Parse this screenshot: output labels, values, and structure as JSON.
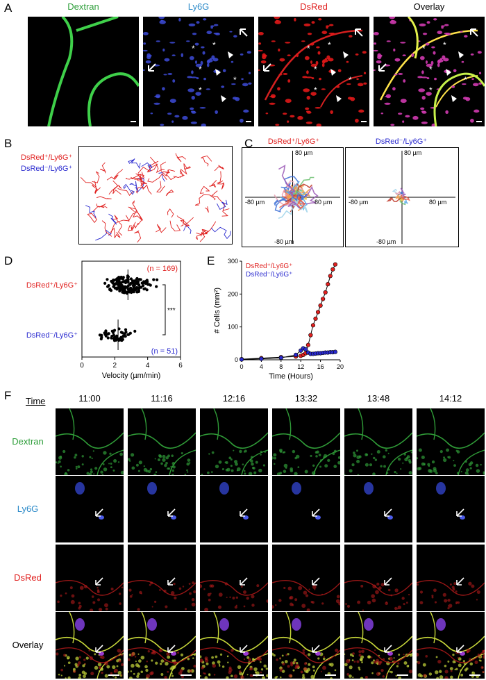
{
  "panels": {
    "A": "A",
    "B": "B",
    "C": "C",
    "D": "D",
    "E": "E",
    "F": "F"
  },
  "panel_a": {
    "channels": [
      {
        "name": "Dextran",
        "color": "#2e9e3a"
      },
      {
        "name": "Ly6G",
        "color": "#2d8bc9"
      },
      {
        "name": "DsRed",
        "color": "#e0201f"
      },
      {
        "name": "Overlay",
        "color": "#000000"
      }
    ]
  },
  "panel_b": {
    "legend": [
      {
        "label": "DsRed⁺/Ly6G⁺",
        "color": "#e0201f"
      },
      {
        "label": "DsRed⁻/Ly6G⁺",
        "color": "#2a2acf"
      }
    ]
  },
  "panel_c": {
    "plots": [
      {
        "title": "DsRed⁺/Ly6G⁺",
        "color": "#e0201f",
        "top": "80 µm",
        "bottom": "-80 µm",
        "left": "-80 µm",
        "right": "80 µm"
      },
      {
        "title": "DsRed⁻/Ly6G⁺",
        "color": "#2a2acf",
        "top": "80 µm",
        "bottom": "-80 µm",
        "left": "-80 µm",
        "right": "80 µm"
      }
    ]
  },
  "chart_data": [
    {
      "type": "scatter",
      "panel": "D",
      "categories": [
        "DsRed⁺/Ly6G⁺",
        "DsRed⁻/Ly6G⁺"
      ],
      "xlabel": "Velocity (µm/min)",
      "xlim": [
        0,
        6
      ],
      "xticks": [
        "0",
        "2",
        "4",
        "6"
      ],
      "annotations": [
        "(n = 169)",
        "(n = 51)",
        "***"
      ],
      "series": [
        {
          "name": "DsRed⁺/Ly6G⁺",
          "n": 169,
          "mean": 2.8,
          "color": "#e0201f"
        },
        {
          "name": "DsRed⁻/Ly6G⁺",
          "n": 51,
          "mean": 2.2,
          "color": "#2a2acf"
        }
      ]
    },
    {
      "type": "line",
      "panel": "E",
      "xlabel": "Time (Hours)",
      "ylabel": "# Cells (mm²)",
      "xlim": [
        0,
        20
      ],
      "ylim": [
        0,
        300
      ],
      "xticks": [
        "0",
        "4",
        "8",
        "12",
        "16",
        "20"
      ],
      "yticks": [
        "0",
        "100",
        "200",
        "300"
      ],
      "series": [
        {
          "name": "DsRed⁺/Ly6G⁺",
          "color": "#e0201f",
          "x": [
            0,
            4,
            8,
            11,
            12,
            12.5,
            13,
            13.5,
            14,
            14.5,
            15,
            15.5,
            16,
            16.5,
            17,
            17.5,
            18,
            18.5,
            19
          ],
          "y": [
            2,
            5,
            8,
            10,
            12,
            15,
            20,
            45,
            75,
            105,
            125,
            145,
            165,
            185,
            205,
            230,
            255,
            275,
            290
          ]
        },
        {
          "name": "DsRed⁻/Ly6G⁺",
          "color": "#2a2acf",
          "x": [
            0,
            4,
            8,
            11,
            12,
            12.5,
            13,
            13.5,
            14,
            14.5,
            15,
            15.5,
            16,
            16.5,
            17,
            17.5,
            18,
            18.5,
            19
          ],
          "y": [
            1,
            3,
            6,
            15,
            28,
            35,
            32,
            22,
            18,
            18,
            19,
            20,
            20,
            21,
            22,
            22,
            23,
            23,
            24
          ]
        }
      ]
    }
  ],
  "panel_f": {
    "time_header": "Time",
    "times": [
      "11:00",
      "11:16",
      "12:16",
      "13:32",
      "13:48",
      "14:12"
    ],
    "rows": [
      {
        "name": "Dextran",
        "color": "#2e9e3a"
      },
      {
        "name": "Ly6G",
        "color": "#2d8bc9"
      },
      {
        "name": "DsRed",
        "color": "#e0201f"
      },
      {
        "name": "Overlay",
        "color": "#000000"
      }
    ]
  }
}
